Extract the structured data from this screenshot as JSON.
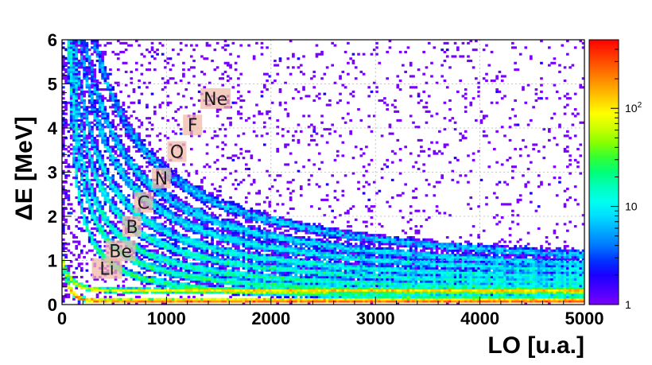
{
  "chart_data": {
    "type": "heatmap",
    "xlabel": "LO [u.a.]",
    "ylabel": "ΔE [MeV]",
    "xlim": [
      0,
      5000
    ],
    "ylim": [
      0,
      6
    ],
    "x_ticks": [
      "0",
      "1000",
      "2000",
      "3000",
      "4000",
      "5000"
    ],
    "y_ticks": [
      "0",
      "1",
      "2",
      "3",
      "4",
      "5",
      "6"
    ],
    "grid": true,
    "colorbar": {
      "scale": "log",
      "range": [
        1,
        500
      ],
      "ticks": [
        {
          "value": 1,
          "label": "1"
        },
        {
          "value": 10,
          "label": "10"
        },
        {
          "value": 100,
          "label": "10",
          "sup": "2"
        }
      ],
      "colors": [
        "#7a00ff",
        "#4a00ff",
        "#1a00ff",
        "#0033ff",
        "#0077ff",
        "#00aaff",
        "#00ddff",
        "#00ffee",
        "#00ffbb",
        "#00ff77",
        "#33ff33",
        "#88ff00",
        "#ccff00",
        "#ffff00",
        "#ffcc00",
        "#ff9900",
        "#ff6600",
        "#ff3300",
        "#ff0000"
      ]
    },
    "bands": [
      {
        "name": "Li",
        "A": 420,
        "x0": -10,
        "floor": 0.14
      },
      {
        "name": "Be",
        "A": 640,
        "x0": -40,
        "floor": 0.3
      },
      {
        "name": "B",
        "A": 860,
        "x0": -80,
        "floor": 0.45
      },
      {
        "name": "C",
        "A": 1180,
        "x0": -120,
        "floor": 0.6
      },
      {
        "name": "N",
        "A": 1500,
        "x0": -150,
        "floor": 0.75
      },
      {
        "name": "O",
        "A": 1950,
        "x0": -180,
        "floor": 0.9
      },
      {
        "name": "F",
        "A": 2400,
        "x0": -220,
        "floor": 1.05
      },
      {
        "name": "Ne",
        "A": 3100,
        "x0": -260,
        "floor": 1.2
      }
    ],
    "annotations": [
      {
        "text": "Li",
        "x": 430,
        "y": 0.8
      },
      {
        "text": "Be",
        "x": 560,
        "y": 1.2
      },
      {
        "text": "B",
        "x": 670,
        "y": 1.75
      },
      {
        "text": "C",
        "x": 780,
        "y": 2.3
      },
      {
        "text": "N",
        "x": 950,
        "y": 2.85
      },
      {
        "text": "O",
        "x": 1100,
        "y": 3.45
      },
      {
        "text": "F",
        "x": 1250,
        "y": 4.05
      },
      {
        "text": "Ne",
        "x": 1470,
        "y": 4.65
      }
    ]
  }
}
